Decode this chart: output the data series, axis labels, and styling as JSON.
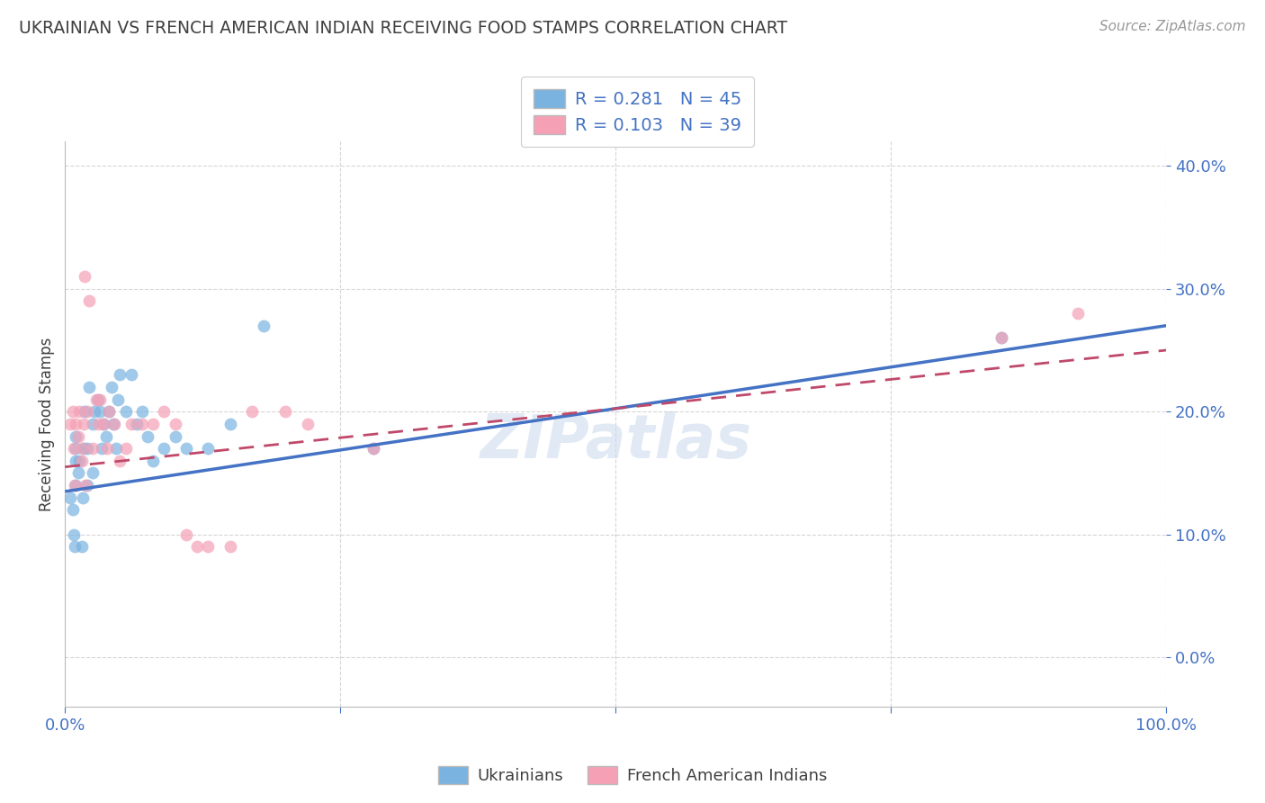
{
  "title": "UKRAINIAN VS FRENCH AMERICAN INDIAN RECEIVING FOOD STAMPS CORRELATION CHART",
  "source": "Source: ZipAtlas.com",
  "ylabel": "Receiving Food Stamps",
  "watermark": "ZIPatlas",
  "blue_color": "#7ab3e0",
  "pink_color": "#f5a0b5",
  "line_blue": "#4472c4",
  "line_pink": "#c0496a",
  "title_color": "#404040",
  "tick_color": "#4472c4",
  "grid_color": "#cccccc",
  "legend_text_color": "#4472c4",
  "xmin": 0.0,
  "xmax": 1.0,
  "ymin": -0.04,
  "ymax": 0.42,
  "yticks": [
    0.0,
    0.1,
    0.2,
    0.3,
    0.4
  ],
  "ytick_labels": [
    "0.0%",
    "10.0%",
    "20.0%",
    "30.0%",
    "40.0%"
  ],
  "xticks": [
    0.0,
    0.25,
    0.5,
    0.75,
    1.0
  ],
  "xtick_labels": [
    "0.0%",
    "",
    "",
    "",
    "100.0%"
  ],
  "ukr_line_x0": 0.0,
  "ukr_line_y0": 0.135,
  "ukr_line_x1": 1.0,
  "ukr_line_y1": 0.27,
  "fr_line_x0": 0.0,
  "fr_line_y0": 0.155,
  "fr_line_x1": 1.0,
  "fr_line_y1": 0.25,
  "ukrainians_x": [
    0.005,
    0.007,
    0.008,
    0.009,
    0.01,
    0.01,
    0.01,
    0.01,
    0.012,
    0.013,
    0.015,
    0.016,
    0.017,
    0.018,
    0.02,
    0.02,
    0.022,
    0.025,
    0.025,
    0.027,
    0.03,
    0.032,
    0.033,
    0.035,
    0.037,
    0.04,
    0.042,
    0.044,
    0.046,
    0.048,
    0.05,
    0.055,
    0.06,
    0.065,
    0.07,
    0.075,
    0.08,
    0.09,
    0.1,
    0.11,
    0.13,
    0.15,
    0.18,
    0.28,
    0.85
  ],
  "ukrainians_y": [
    0.13,
    0.12,
    0.1,
    0.09,
    0.14,
    0.16,
    0.17,
    0.18,
    0.15,
    0.16,
    0.09,
    0.13,
    0.17,
    0.2,
    0.14,
    0.17,
    0.22,
    0.15,
    0.19,
    0.2,
    0.21,
    0.2,
    0.17,
    0.19,
    0.18,
    0.2,
    0.22,
    0.19,
    0.17,
    0.21,
    0.23,
    0.2,
    0.23,
    0.19,
    0.2,
    0.18,
    0.16,
    0.17,
    0.18,
    0.17,
    0.17,
    0.19,
    0.27,
    0.17,
    0.26
  ],
  "french_x": [
    0.005,
    0.007,
    0.008,
    0.009,
    0.01,
    0.012,
    0.013,
    0.015,
    0.016,
    0.017,
    0.018,
    0.019,
    0.02,
    0.022,
    0.025,
    0.028,
    0.03,
    0.032,
    0.035,
    0.038,
    0.04,
    0.045,
    0.05,
    0.055,
    0.06,
    0.07,
    0.08,
    0.09,
    0.1,
    0.11,
    0.12,
    0.13,
    0.15,
    0.17,
    0.2,
    0.22,
    0.28,
    0.85,
    0.92
  ],
  "french_y": [
    0.19,
    0.2,
    0.17,
    0.14,
    0.19,
    0.18,
    0.2,
    0.16,
    0.17,
    0.19,
    0.31,
    0.14,
    0.2,
    0.29,
    0.17,
    0.21,
    0.19,
    0.21,
    0.19,
    0.17,
    0.2,
    0.19,
    0.16,
    0.17,
    0.19,
    0.19,
    0.19,
    0.2,
    0.19,
    0.1,
    0.09,
    0.09,
    0.09,
    0.2,
    0.2,
    0.19,
    0.17,
    0.26,
    0.28
  ],
  "legend_label_blue": "Ukrainians",
  "legend_label_pink": "French American Indians",
  "background_color": "#ffffff",
  "scatter_size": 100,
  "scatter_alpha": 0.7
}
